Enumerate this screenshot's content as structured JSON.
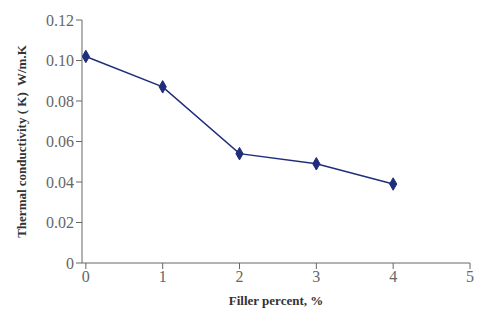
{
  "chart_data": {
    "type": "line",
    "xlabel": "Filler percent, %",
    "ylabel": "Thermal conductivity ( K)  W/m.K",
    "x": [
      0,
      1,
      2,
      3,
      4
    ],
    "values": [
      0.102,
      0.087,
      0.054,
      0.049,
      0.039
    ],
    "color": "#1f2d7a",
    "marker": "diamond",
    "xlim": [
      -0.05,
      5
    ],
    "xticks": [
      0,
      1,
      2,
      3,
      4,
      5
    ],
    "ylim": [
      0,
      0.12
    ],
    "yticks": [
      0,
      0.02,
      0.04,
      0.06,
      0.08,
      {
        "value": 0.1,
        "label": "0.10"
      },
      0.12
    ],
    "grid": false
  }
}
